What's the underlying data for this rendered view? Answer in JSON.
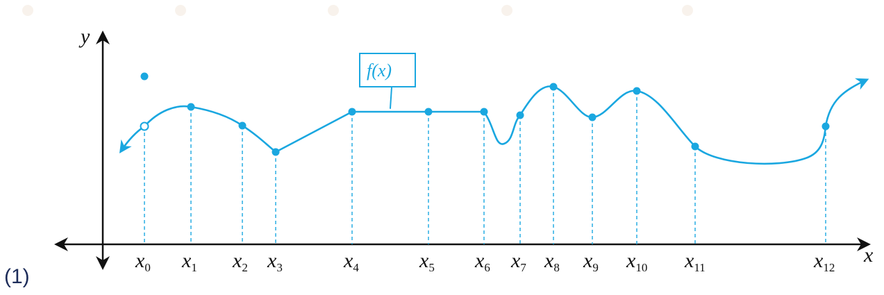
{
  "figure": {
    "problem_number": "(1)",
    "curve_label": "f(x)",
    "axes": {
      "x_label": "x",
      "y_label": "y"
    },
    "colors": {
      "curve": "#1aa7e0",
      "axis": "#111111",
      "label_text": "#111111",
      "problem_number": "#1e2d5a"
    },
    "tick_labels": [
      {
        "base": "x",
        "sub": "0"
      },
      {
        "base": "x",
        "sub": "1"
      },
      {
        "base": "x",
        "sub": "2"
      },
      {
        "base": "x",
        "sub": "3"
      },
      {
        "base": "x",
        "sub": "4"
      },
      {
        "base": "x",
        "sub": "5"
      },
      {
        "base": "x",
        "sub": "6"
      },
      {
        "base": "x",
        "sub": "7"
      },
      {
        "base": "x",
        "sub": "8"
      },
      {
        "base": "x",
        "sub": "9"
      },
      {
        "base": "x",
        "sub": "10"
      },
      {
        "base": "x",
        "sub": "11"
      },
      {
        "base": "x",
        "sub": "12"
      }
    ],
    "special_points": {
      "x0": {
        "hole": "open",
        "isolated_point": "filled, above curve"
      }
    }
  }
}
